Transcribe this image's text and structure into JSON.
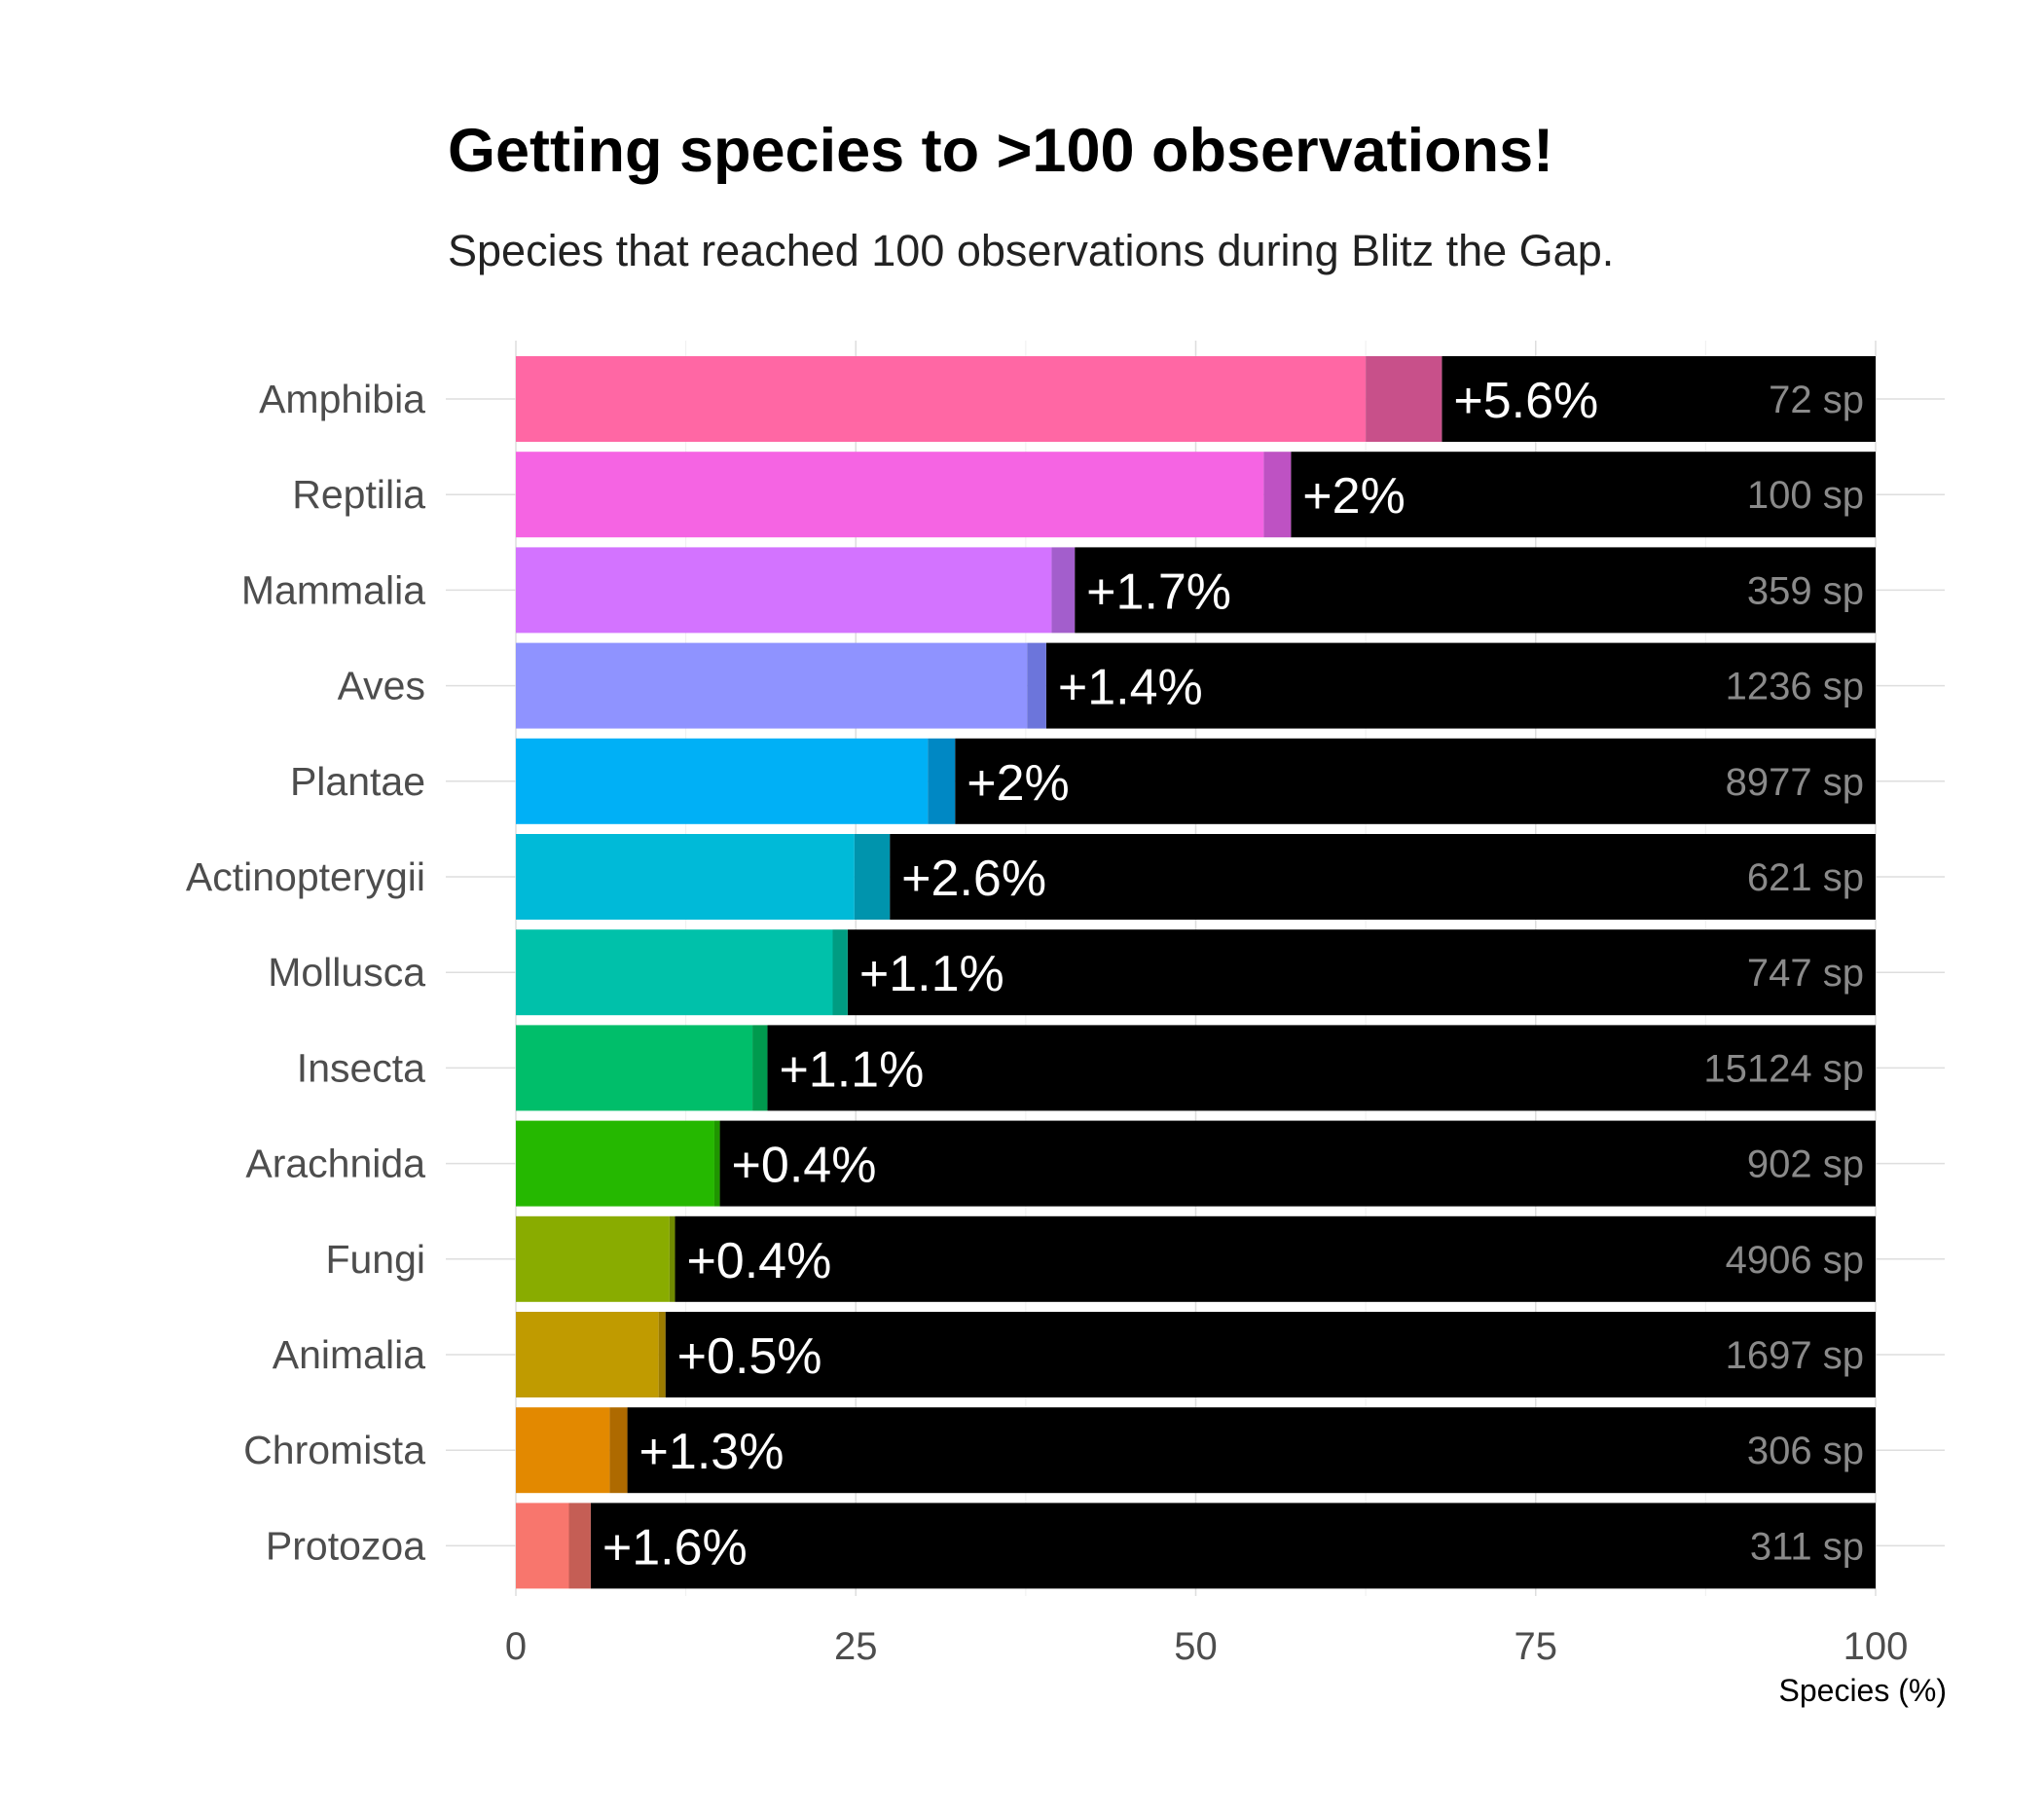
{
  "chart_data": {
    "type": "bar",
    "orientation": "horizontal",
    "stacked": true,
    "title": "Getting species to >100 observations!",
    "subtitle": "Species that reached 100 observations during Blitz the Gap.",
    "xlabel": "Species (%)",
    "ylabel": "",
    "xlim": [
      0,
      100
    ],
    "xticks": [
      0,
      25,
      50,
      75,
      100
    ],
    "grid": true,
    "legend": "none",
    "categories": [
      "Amphibia",
      "Reptilia",
      "Mammalia",
      "Aves",
      "Plantae",
      "Actinopterygii",
      "Mollusca",
      "Insecta",
      "Arachnida",
      "Fungi",
      "Animalia",
      "Chromista",
      "Protozoa"
    ],
    "series": [
      {
        "values": [
          62.5,
          55.0,
          39.4,
          37.6,
          30.3,
          24.9,
          23.3,
          17.4,
          14.6,
          11.3,
          10.5,
          6.9,
          3.9
        ]
      },
      {
        "values": [
          5.6,
          2.0,
          1.7,
          1.4,
          2.0,
          2.6,
          1.1,
          1.1,
          0.4,
          0.4,
          0.5,
          1.3,
          1.6
        ]
      }
    ],
    "gain_labels": [
      "+5.6%",
      "+2%",
      "+1.7%",
      "+1.4%",
      "+2%",
      "+2.6%",
      "+1.1%",
      "+1.1%",
      "+0.4%",
      "+0.4%",
      "+0.5%",
      "+1.3%",
      "+1.6%"
    ],
    "count_labels": [
      "72 sp",
      "100 sp",
      "359 sp",
      "1236 sp",
      "8977 sp",
      "621 sp",
      "747 sp",
      "15124 sp",
      "902 sp",
      "4906 sp",
      "1697 sp",
      "306 sp",
      "311 sp"
    ],
    "colors": [
      "#FF67A4",
      "#F564E3",
      "#D373FF",
      "#8F93FF",
      "#00B0F6",
      "#00BAD8",
      "#00C1AA",
      "#00BE6A",
      "#25B800",
      "#89AC00",
      "#C09B00",
      "#E38900",
      "#F8766D"
    ],
    "gain_colors": [
      "#C8508A",
      "#BE52C3",
      "#A35ECC",
      "#6C75DB",
      "#0088C4",
      "#0094AD",
      "#009C82",
      "#009A4E",
      "#1F9500",
      "#708A00",
      "#9C7C00",
      "#AE6A00",
      "#C55E55"
    ],
    "remainder_color": "#000000"
  }
}
